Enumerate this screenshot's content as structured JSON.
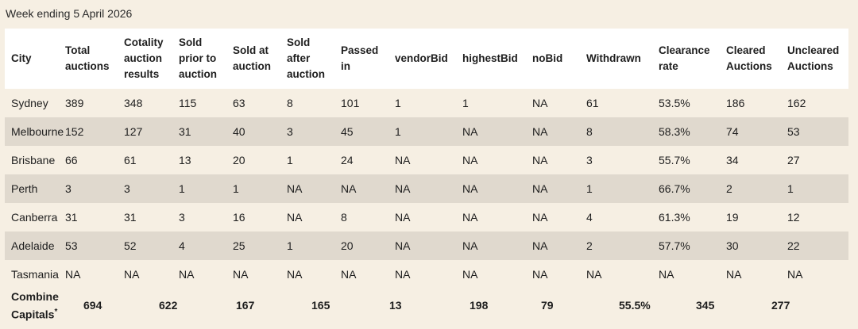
{
  "caption": "Week ending 5 April 2026",
  "headers": [
    "City",
    "Total auctions",
    "Cotality auction results",
    "Sold prior to auction",
    "Sold at auction",
    "Sold after auction",
    "Passed in",
    "vendorBid",
    "highestBid",
    "noBid",
    "Withdrawn",
    "Clearance rate",
    "Cleared Auctions",
    "Uncleared Auctions"
  ],
  "rows": [
    [
      "Sydney",
      "389",
      "348",
      "115",
      "63",
      "8",
      "101",
      "1",
      "1",
      "NA",
      "61",
      "53.5%",
      "186",
      "162"
    ],
    [
      "Melbourne",
      "152",
      "127",
      "31",
      "40",
      "3",
      "45",
      "1",
      "NA",
      "NA",
      "8",
      "58.3%",
      "74",
      "53"
    ],
    [
      "Brisbane",
      "66",
      "61",
      "13",
      "20",
      "1",
      "24",
      "NA",
      "NA",
      "NA",
      "3",
      "55.7%",
      "34",
      "27"
    ],
    [
      "Perth",
      "3",
      "3",
      "1",
      "1",
      "NA",
      "NA",
      "NA",
      "NA",
      "NA",
      "1",
      "66.7%",
      "2",
      "1"
    ],
    [
      "Canberra",
      "31",
      "31",
      "3",
      "16",
      "NA",
      "8",
      "NA",
      "NA",
      "NA",
      "4",
      "61.3%",
      "19",
      "12"
    ],
    [
      "Adelaide",
      "53",
      "52",
      "4",
      "25",
      "1",
      "20",
      "NA",
      "NA",
      "NA",
      "2",
      "57.7%",
      "30",
      "22"
    ],
    [
      "Tasmania",
      "NA",
      "NA",
      "NA",
      "NA",
      "NA",
      "NA",
      "NA",
      "NA",
      "NA",
      "NA",
      "NA",
      "NA",
      "NA"
    ]
  ],
  "combined": {
    "label": "Combined Capitals",
    "marker": "*",
    "values": [
      "694",
      "622",
      "167",
      "165",
      "13",
      "198",
      "79",
      "55.5%",
      "345",
      "277"
    ]
  }
}
